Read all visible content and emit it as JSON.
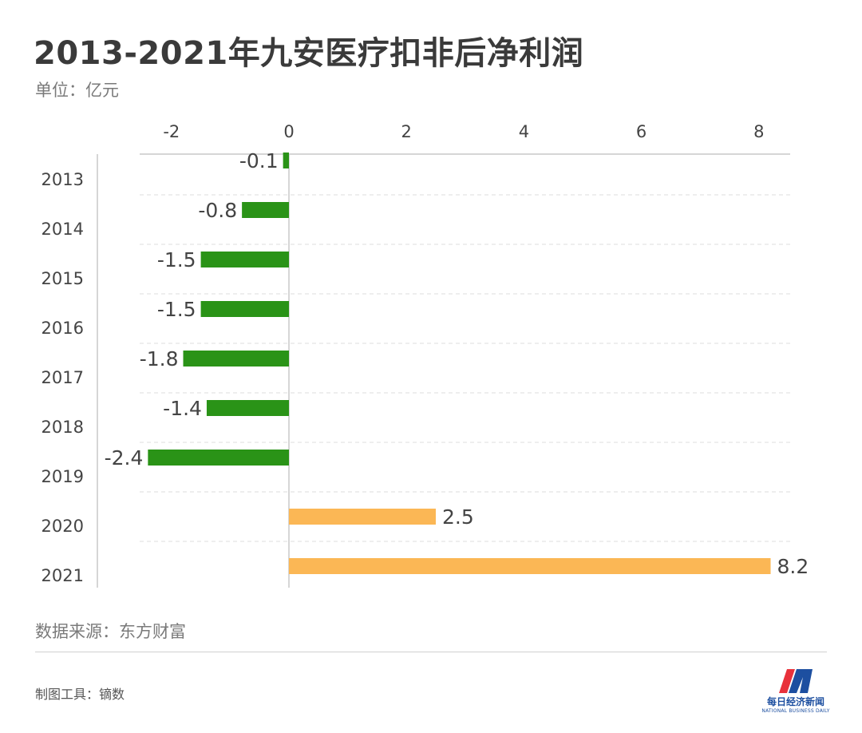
{
  "header": {
    "title": "2013-2021年九安医疗扣非后净利润",
    "unit": "单位：亿元"
  },
  "footer": {
    "source": "数据来源：东方财富",
    "tool": "制图工具：镝数",
    "logo_name": "每日经济新闻",
    "logo_en": "NATIONAL BUSINESS DAILY"
  },
  "colors": {
    "negative": "#2a9317",
    "positive": "#fbb755",
    "axis": "#c8c8c8",
    "grid": "#dcdcdc",
    "text": "#444444",
    "logo_red": "#e8313b",
    "logo_blue": "#1d4fa0"
  },
  "chart_data": {
    "type": "bar",
    "orientation": "horizontal",
    "categories": [
      "2013",
      "2014",
      "2015",
      "2016",
      "2017",
      "2018",
      "2019",
      "2020",
      "2021"
    ],
    "values": [
      -0.1,
      -0.8,
      -1.5,
      -1.5,
      -1.8,
      -1.4,
      -2.4,
      2.5,
      8.2
    ],
    "value_labels": [
      "-0.1",
      "-0.8",
      "-1.5",
      "-1.5",
      "-1.8",
      "-1.4",
      "-2.4",
      "2.5",
      "8.2"
    ],
    "xticks": [
      -2,
      0,
      2,
      4,
      6,
      8
    ],
    "xtick_labels": [
      "-2",
      "0",
      "2",
      "4",
      "6",
      "8"
    ],
    "xlim": [
      -2.6,
      8.6
    ],
    "xaxis_position": "top",
    "grid": true,
    "legend": "none",
    "title": "2013-2021年九安医疗扣非后净利润",
    "xlabel": "",
    "ylabel": ""
  }
}
